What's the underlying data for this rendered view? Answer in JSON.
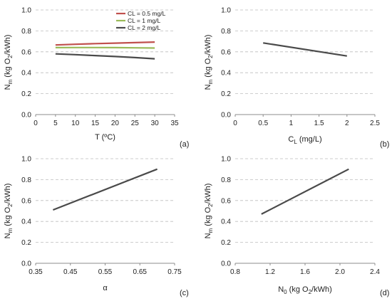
{
  "chart_data": [
    {
      "type": "line",
      "panel_label": "(a)",
      "xlabel": "T (ºC)",
      "ylabel": {
        "base": "N",
        "sub1": "m",
        "mid": " (kg O",
        "sub2": "2",
        "end": "/kWh)"
      },
      "xlim": [
        0,
        35
      ],
      "ylim": [
        0,
        1
      ],
      "xticks": [
        0,
        5,
        10,
        15,
        20,
        25,
        30,
        35
      ],
      "yticks": [
        "0.0",
        "0.2",
        "0.4",
        "0.6",
        "0.8",
        "1.0"
      ],
      "xtick_labels": [
        "0",
        "5",
        "10",
        "15",
        "20",
        "25",
        "30",
        "35"
      ],
      "grid": "horizontal dashed",
      "legend_position": "top-right",
      "series": [
        {
          "name": "CL = 0.5 mg/L",
          "color": "#c0504d",
          "x": [
            5,
            10,
            15,
            20,
            25,
            30
          ],
          "y": [
            0.665,
            0.672,
            0.678,
            0.683,
            0.688,
            0.693
          ]
        },
        {
          "name": "CL = 1 mg/L",
          "color": "#9bbb59",
          "x": [
            5,
            10,
            15,
            20,
            25,
            30
          ],
          "y": [
            0.64,
            0.641,
            0.641,
            0.64,
            0.638,
            0.636
          ]
        },
        {
          "name": "CL = 2 mg/L",
          "color": "#4a4a4a",
          "x": [
            5,
            10,
            15,
            20,
            25,
            30
          ],
          "y": [
            0.58,
            0.573,
            0.564,
            0.555,
            0.545,
            0.533
          ]
        }
      ]
    },
    {
      "type": "line",
      "panel_label": "(b)",
      "xlabel": {
        "base": "C",
        "sub": "L",
        "end": " (mg/L)"
      },
      "ylabel": {
        "base": "N",
        "sub1": "m",
        "mid": " (kg O",
        "sub2": "2",
        "end": "/kWh)"
      },
      "xlim": [
        0,
        2.5
      ],
      "ylim": [
        0,
        1
      ],
      "xticks": [
        0,
        0.5,
        1,
        1.5,
        2,
        2.5
      ],
      "xtick_labels": [
        "0",
        "0.5",
        "1",
        "1.5",
        "2",
        "2.5"
      ],
      "yticks": [
        "0.0",
        "0.2",
        "0.4",
        "0.6",
        "0.8",
        "1.0"
      ],
      "grid": "horizontal dashed",
      "series": [
        {
          "color": "#4a4a4a",
          "x": [
            0.5,
            2
          ],
          "y": [
            0.685,
            0.56
          ]
        }
      ]
    },
    {
      "type": "line",
      "panel_label": "(c)",
      "xlabel": "α",
      "ylabel": {
        "base": "N",
        "sub1": "m",
        "mid": " (kg O",
        "sub2": "2",
        "end": "/kWh)"
      },
      "xlim": [
        0.35,
        0.75
      ],
      "ylim": [
        0,
        1
      ],
      "xticks": [
        0.35,
        0.45,
        0.55,
        0.65,
        0.75
      ],
      "xtick_labels": [
        "0.35",
        "0.45",
        "0.55",
        "0.65",
        "0.75"
      ],
      "yticks": [
        "0.0",
        "0.2",
        "0.4",
        "0.6",
        "0.8",
        "1.0"
      ],
      "grid": "horizontal dashed",
      "series": [
        {
          "color": "#4a4a4a",
          "x": [
            0.4,
            0.7
          ],
          "y": [
            0.51,
            0.9
          ]
        }
      ]
    },
    {
      "type": "line",
      "panel_label": "(d)",
      "xlabel": {
        "base": "N",
        "sub": "0",
        "mid": " (kg O",
        "sub2": "2",
        "end": "/kWh)"
      },
      "ylabel": {
        "base": "N",
        "sub1": "m",
        "mid": " (kg O",
        "sub2": "2",
        "end": "/kWh)"
      },
      "xlim": [
        0.8,
        2.4
      ],
      "ylim": [
        0,
        1
      ],
      "xticks": [
        0.8,
        1.2,
        1.6,
        2.0,
        2.4
      ],
      "xtick_labels": [
        "0.8",
        "1.2",
        "1.6",
        "2.0",
        "2.4"
      ],
      "yticks": [
        "0.0",
        "0.2",
        "0.4",
        "0.6",
        "0.8",
        "1.0"
      ],
      "grid": "horizontal dashed",
      "series": [
        {
          "color": "#4a4a4a",
          "x": [
            1.1,
            2.1
          ],
          "y": [
            0.47,
            0.9
          ]
        }
      ]
    }
  ]
}
